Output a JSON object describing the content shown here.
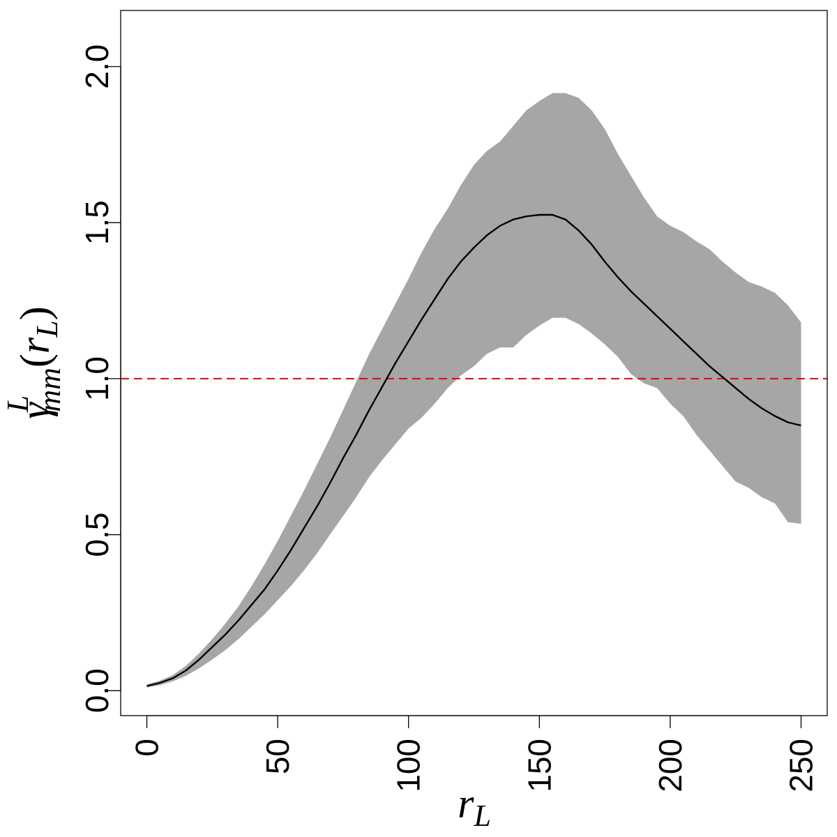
{
  "chart_data": {
    "type": "line",
    "xlabel": {
      "main": "r",
      "sub": "L"
    },
    "ylabel": {
      "greek": "γ",
      "sup": "L",
      "sub": "mm",
      "open": "(",
      "var": "r",
      "var_sub": "L",
      "close": ")"
    },
    "xlim": [
      -10,
      260
    ],
    "ylim": [
      -0.08,
      2.18
    ],
    "x_ticks": [
      0,
      50,
      100,
      150,
      200,
      250
    ],
    "x_tick_labels": [
      "0",
      "50",
      "100",
      "150",
      "200",
      "250"
    ],
    "y_ticks": [
      0.0,
      0.5,
      1.0,
      1.5,
      2.0
    ],
    "y_tick_labels": [
      "0.0",
      "0.5",
      "1.0",
      "1.5",
      "2.0"
    ],
    "reference_line": {
      "y": 1.0,
      "color": "#e8000b",
      "style": "dashed"
    },
    "band_color": "#a6a6a6",
    "line_color": "#000000",
    "series": [
      {
        "name": "mean",
        "x": [
          0,
          5,
          10,
          15,
          20,
          25,
          30,
          35,
          40,
          45,
          50,
          55,
          60,
          65,
          70,
          75,
          80,
          85,
          90,
          95,
          100,
          105,
          110,
          115,
          120,
          125,
          130,
          135,
          140,
          145,
          150,
          155,
          160,
          165,
          170,
          175,
          180,
          185,
          190,
          195,
          200,
          205,
          210,
          215,
          220,
          225,
          230,
          235,
          240,
          245,
          250
        ],
        "y": [
          0.015,
          0.025,
          0.04,
          0.065,
          0.1,
          0.14,
          0.18,
          0.225,
          0.275,
          0.325,
          0.385,
          0.45,
          0.52,
          0.59,
          0.665,
          0.745,
          0.82,
          0.9,
          0.975,
          1.05,
          1.12,
          1.19,
          1.255,
          1.32,
          1.375,
          1.42,
          1.46,
          1.49,
          1.51,
          1.52,
          1.525,
          1.525,
          1.51,
          1.475,
          1.43,
          1.375,
          1.325,
          1.28,
          1.24,
          1.2,
          1.16,
          1.12,
          1.08,
          1.04,
          1.005,
          0.97,
          0.935,
          0.905,
          0.88,
          0.86,
          0.85
        ]
      },
      {
        "name": "upper",
        "x": [
          0,
          5,
          10,
          15,
          20,
          25,
          30,
          35,
          40,
          45,
          50,
          55,
          60,
          65,
          70,
          75,
          80,
          85,
          90,
          95,
          100,
          105,
          110,
          115,
          120,
          125,
          130,
          135,
          140,
          145,
          150,
          155,
          160,
          165,
          170,
          175,
          180,
          185,
          190,
          195,
          200,
          205,
          210,
          215,
          220,
          225,
          230,
          235,
          240,
          245,
          250
        ],
        "y": [
          0.02,
          0.032,
          0.05,
          0.08,
          0.12,
          0.165,
          0.215,
          0.27,
          0.335,
          0.405,
          0.48,
          0.56,
          0.64,
          0.725,
          0.81,
          0.9,
          0.99,
          1.08,
          1.16,
          1.24,
          1.32,
          1.405,
          1.48,
          1.545,
          1.62,
          1.685,
          1.73,
          1.76,
          1.81,
          1.86,
          1.89,
          1.915,
          1.915,
          1.9,
          1.86,
          1.8,
          1.72,
          1.65,
          1.58,
          1.52,
          1.49,
          1.47,
          1.44,
          1.415,
          1.375,
          1.34,
          1.31,
          1.295,
          1.275,
          1.235,
          1.18
        ]
      },
      {
        "name": "lower",
        "x": [
          0,
          5,
          10,
          15,
          20,
          25,
          30,
          35,
          40,
          45,
          50,
          55,
          60,
          65,
          70,
          75,
          80,
          85,
          90,
          95,
          100,
          105,
          110,
          115,
          120,
          125,
          130,
          135,
          140,
          145,
          150,
          155,
          160,
          165,
          170,
          175,
          180,
          185,
          190,
          195,
          200,
          205,
          210,
          215,
          220,
          225,
          230,
          235,
          240,
          245,
          250
        ],
        "y": [
          0.01,
          0.018,
          0.03,
          0.048,
          0.072,
          0.1,
          0.13,
          0.165,
          0.205,
          0.245,
          0.29,
          0.335,
          0.385,
          0.44,
          0.5,
          0.56,
          0.62,
          0.685,
          0.74,
          0.79,
          0.84,
          0.875,
          0.92,
          0.97,
          1.01,
          1.04,
          1.08,
          1.1,
          1.1,
          1.14,
          1.17,
          1.195,
          1.195,
          1.175,
          1.145,
          1.11,
          1.07,
          1.015,
          0.985,
          0.97,
          0.92,
          0.88,
          0.82,
          0.77,
          0.72,
          0.67,
          0.65,
          0.62,
          0.6,
          0.54,
          0.535
        ]
      }
    ]
  }
}
